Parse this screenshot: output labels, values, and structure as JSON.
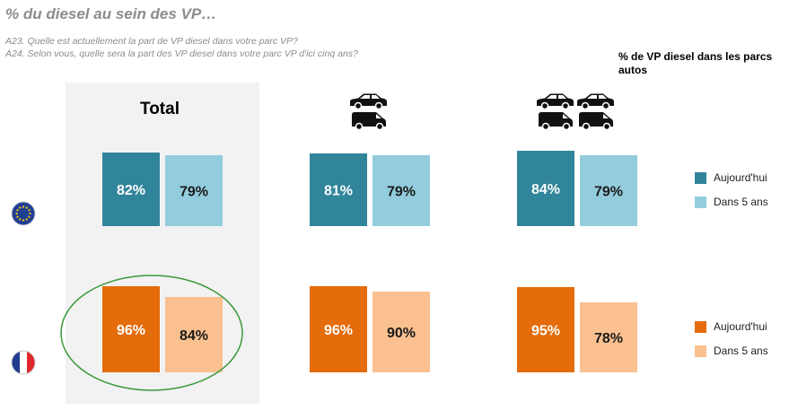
{
  "title": "% du diesel au sein des VP…",
  "questions": [
    "A23. Quelle est actuellement la part de VP diesel dans votre parc VP?",
    "A24. Selon vous, quelle sera la part des VP diesel dans votre parc VP d'ici cinq ans?"
  ],
  "legend_title": "% de VP diesel dans les parcs autos",
  "total_label": "Total",
  "colors": {
    "eu_today": "#31859b",
    "eu_5y": "#93cddd",
    "fr_today": "#e46c0a",
    "fr_5y": "#fac090",
    "highlight": "#3a9a3a",
    "total_bg": "#f2f2f2"
  },
  "legend": {
    "eu": [
      {
        "label": "Aujourd'hui",
        "color": "#31859b"
      },
      {
        "label": "Dans 5 ans",
        "color": "#93cddd"
      }
    ],
    "fr": [
      {
        "label": "Aujourd'hui",
        "color": "#e46c0a"
      },
      {
        "label": "Dans 5 ans",
        "color": "#fac090"
      }
    ]
  },
  "rows": [
    {
      "flag": "eu-flag-icon",
      "region": "eu"
    },
    {
      "flag": "france-flag-icon",
      "region": "fr"
    }
  ],
  "chart_data": [
    {
      "type": "bar",
      "region": "eu",
      "categories": [
        "Total",
        "1 car + 1 van",
        "2 cars + 2 vans"
      ],
      "series": [
        {
          "name": "Aujourd'hui",
          "values": [
            82,
            81,
            84
          ]
        },
        {
          "name": "Dans 5 ans",
          "values": [
            79,
            79,
            79
          ]
        }
      ]
    },
    {
      "type": "bar",
      "region": "fr",
      "categories": [
        "Total",
        "1 car + 1 van",
        "2 cars + 2 vans"
      ],
      "series": [
        {
          "name": "Aujourd'hui",
          "values": [
            96,
            96,
            95
          ]
        },
        {
          "name": "Dans 5 ans",
          "values": [
            84,
            90,
            78
          ]
        }
      ]
    }
  ]
}
